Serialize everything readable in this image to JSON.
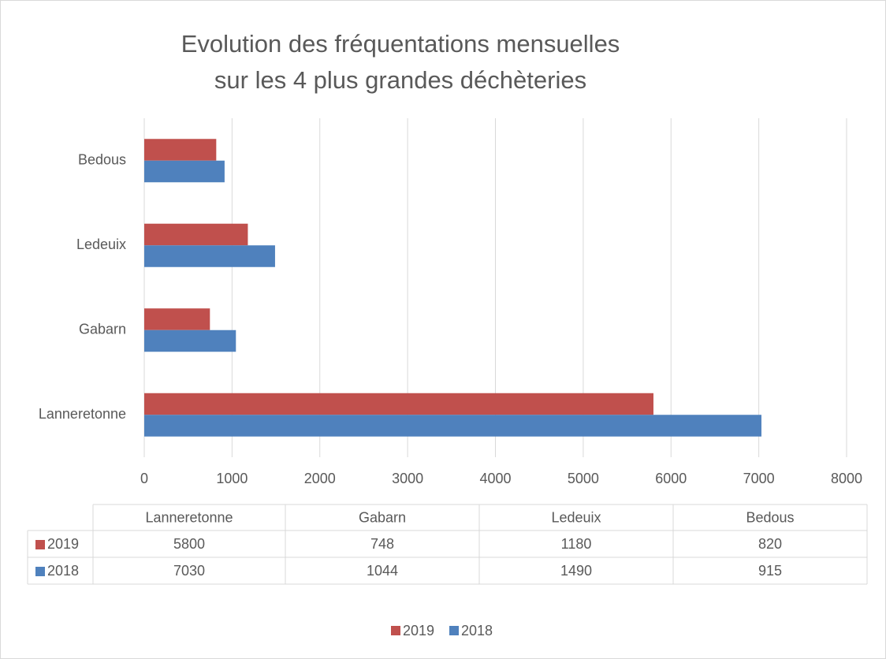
{
  "chart_data": {
    "type": "hbar",
    "title": [
      "Evolution des fréquentations mensuelles",
      "sur les 4 plus grandes déchèteries"
    ],
    "categories": [
      "Lanneretonne",
      "Gabarn",
      "Ledeuix",
      "Bedous"
    ],
    "series": [
      {
        "name": "2019",
        "color": "#c0504d",
        "values": [
          5800,
          748,
          1180,
          820
        ]
      },
      {
        "name": "2018",
        "color": "#4f81bd",
        "values": [
          7030,
          1044,
          1490,
          915
        ]
      }
    ],
    "xlim": [
      0,
      8000
    ],
    "xticks": [
      0,
      1000,
      2000,
      3000,
      4000,
      5000,
      6000,
      7000,
      8000
    ],
    "grid": true,
    "legend": "bottom",
    "data_table": true
  }
}
